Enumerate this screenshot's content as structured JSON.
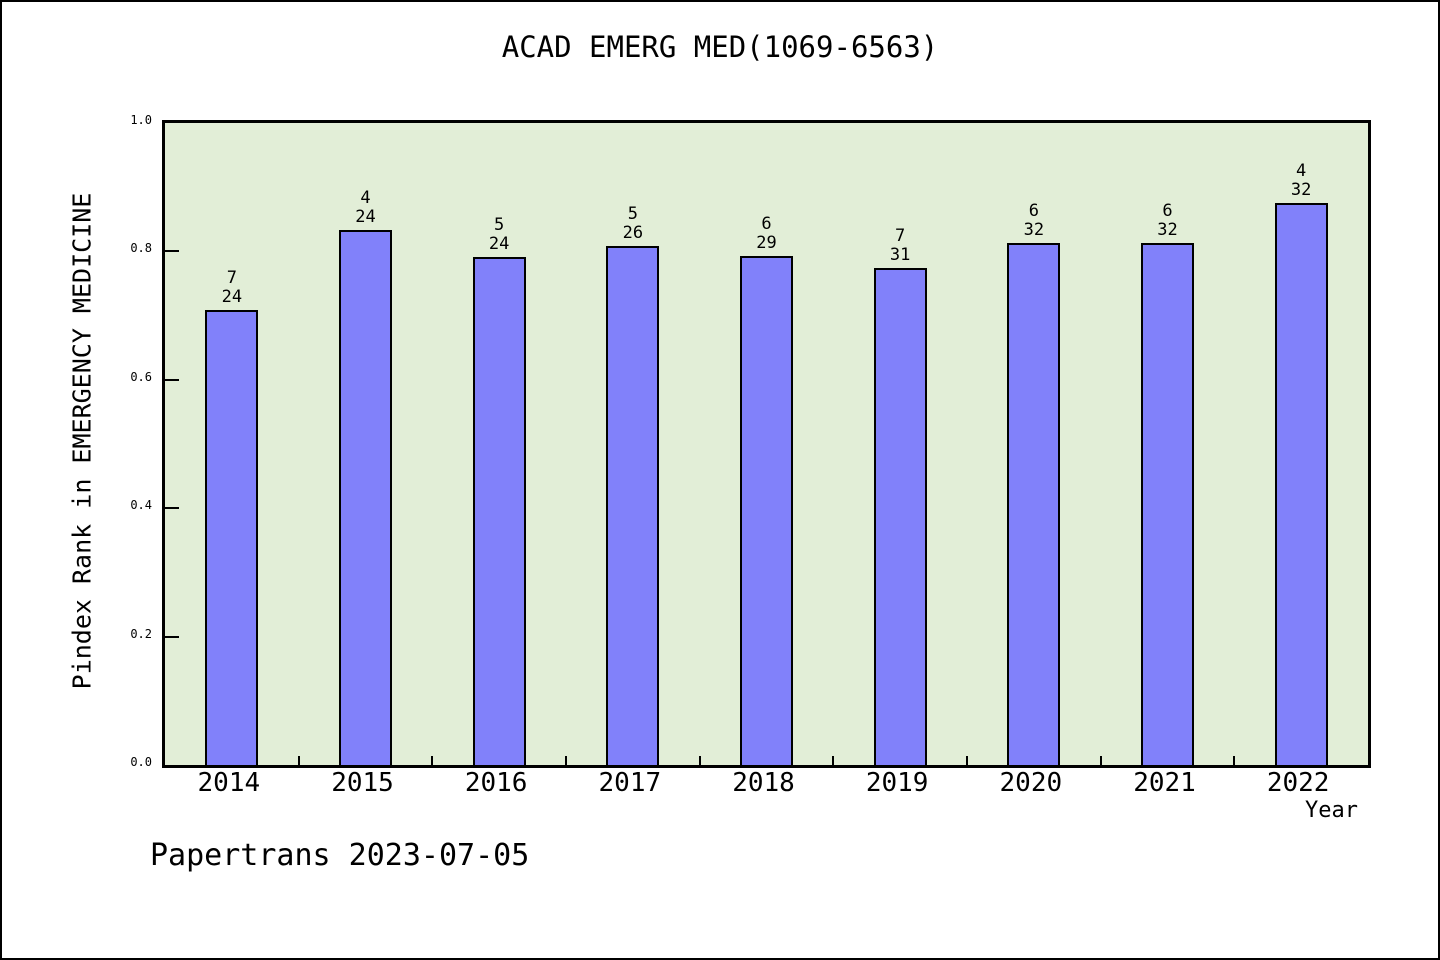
{
  "chart_data": {
    "type": "bar",
    "title": "ACAD EMERG MED(1069-6563)",
    "xlabel": "Year",
    "ylabel": "Pindex Rank in EMERGENCY MEDICINE",
    "footer": "Papertrans 2023-07-05",
    "categories": [
      "2014",
      "2015",
      "2016",
      "2017",
      "2018",
      "2019",
      "2020",
      "2021",
      "2022"
    ],
    "values": [
      0.7083,
      0.8333,
      0.7917,
      0.8077,
      0.7931,
      0.7742,
      0.8125,
      0.8125,
      0.875
    ],
    "annotations": [
      {
        "rank": "7",
        "total": "24"
      },
      {
        "rank": "4",
        "total": "24"
      },
      {
        "rank": "5",
        "total": "24"
      },
      {
        "rank": "5",
        "total": "26"
      },
      {
        "rank": "6",
        "total": "29"
      },
      {
        "rank": "7",
        "total": "31"
      },
      {
        "rank": "6",
        "total": "32"
      },
      {
        "rank": "6",
        "total": "32"
      },
      {
        "rank": "4",
        "total": "32"
      }
    ],
    "ylim": [
      0.0,
      1.0
    ],
    "y_ticks": [
      "0.0",
      "0.2",
      "0.4",
      "0.6",
      "0.8",
      "1.0"
    ],
    "grid": false,
    "legend": "none",
    "colors": {
      "bar_fill": "#8181fa",
      "bar_edge": "#000000",
      "plot_background": "#e2eed7",
      "figure_background": "#ffffff",
      "text": "#000000"
    }
  }
}
